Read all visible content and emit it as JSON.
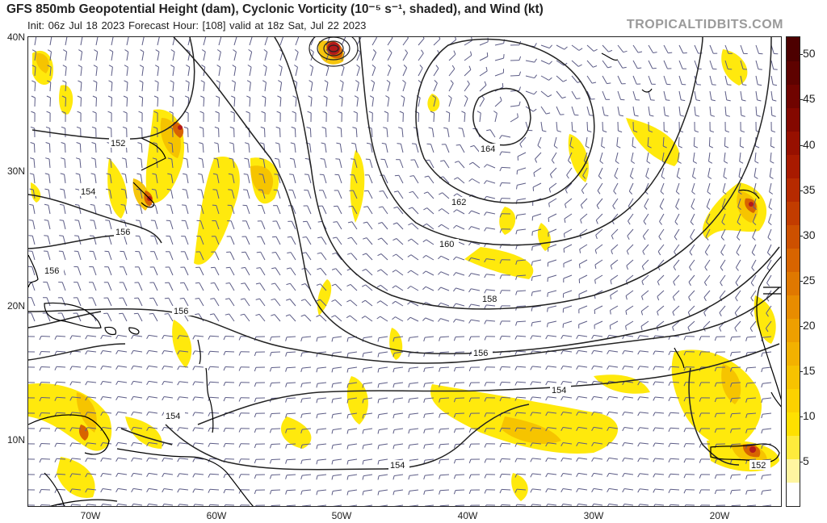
{
  "header": {
    "title": "GFS 850mb Geopotential Height (dam), Cyclonic Vorticity (10⁻⁵ s⁻¹, shaded), and Wind (kt)",
    "subtitle": "Init: 06z Jul 18 2023    Forecast Hour: [108]    valid at 18z Sat, Jul 22 2023",
    "brand": "TROPICALTIDBITS.COM"
  },
  "map": {
    "lat_labels": [
      "40N",
      "30N",
      "20N",
      "10N"
    ],
    "lon_labels": [
      "70W",
      "60W",
      "50W",
      "40W",
      "30W",
      "20W"
    ],
    "contour_labels": [
      "164",
      "162",
      "160",
      "158",
      "156",
      "154",
      "152",
      "154",
      "156",
      "156",
      "154",
      "154",
      "152",
      "152",
      "154",
      "156"
    ],
    "colors": {
      "coast": "#000000",
      "contour": "#222222",
      "barb": "#5c5c86",
      "vort_low": "#ffe200",
      "vort_mid": "#f5c800",
      "vort_high": "#d46a00",
      "vort_peak": "#b31a1a"
    }
  },
  "colorbar": {
    "ticks": [
      "50",
      "45",
      "40",
      "35",
      "30",
      "25",
      "20",
      "15",
      "10",
      "5"
    ],
    "colors": [
      "#ffffff",
      "#fff5a0",
      "#ffeb3c",
      "#ffe000",
      "#fcd100",
      "#f7c200",
      "#f3b100",
      "#ee9f00",
      "#e88c00",
      "#e07800",
      "#d86400",
      "#cd5000",
      "#c23c00",
      "#b62a00",
      "#a81a00",
      "#971000",
      "#840800",
      "#700400",
      "#5e0200",
      "#4d0000"
    ]
  }
}
